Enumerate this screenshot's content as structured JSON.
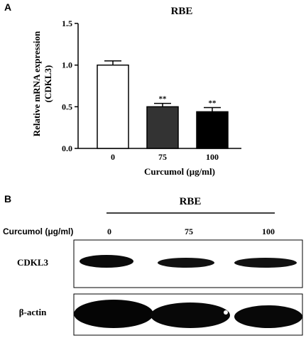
{
  "panel_a": {
    "label": "A",
    "chart_data": {
      "type": "bar",
      "title": "RBE",
      "xlabel": "Curcumol (μg/ml)",
      "ylabel_line1": "Relative mRNA expression",
      "ylabel_line2": "(CDKL3)",
      "categories": [
        "0",
        "75",
        "100"
      ],
      "values": [
        1.0,
        0.5,
        0.44
      ],
      "errors": [
        0.05,
        0.04,
        0.05
      ],
      "significance": [
        "",
        "**",
        "**"
      ],
      "bar_colors": [
        "#ffffff",
        "#333333",
        "#000000"
      ],
      "ylim": [
        0,
        1.5
      ],
      "yticks": [
        "0.0",
        "0.5",
        "1.0",
        "1.5"
      ],
      "grid": false
    }
  },
  "panel_b": {
    "label": "B",
    "group_title": "RBE",
    "row_label": "Curcumol (μg/ml)",
    "lanes": [
      "0",
      "75",
      "100"
    ],
    "blots": [
      {
        "name": "CDKL3"
      },
      {
        "name": "β-actin"
      }
    ]
  }
}
